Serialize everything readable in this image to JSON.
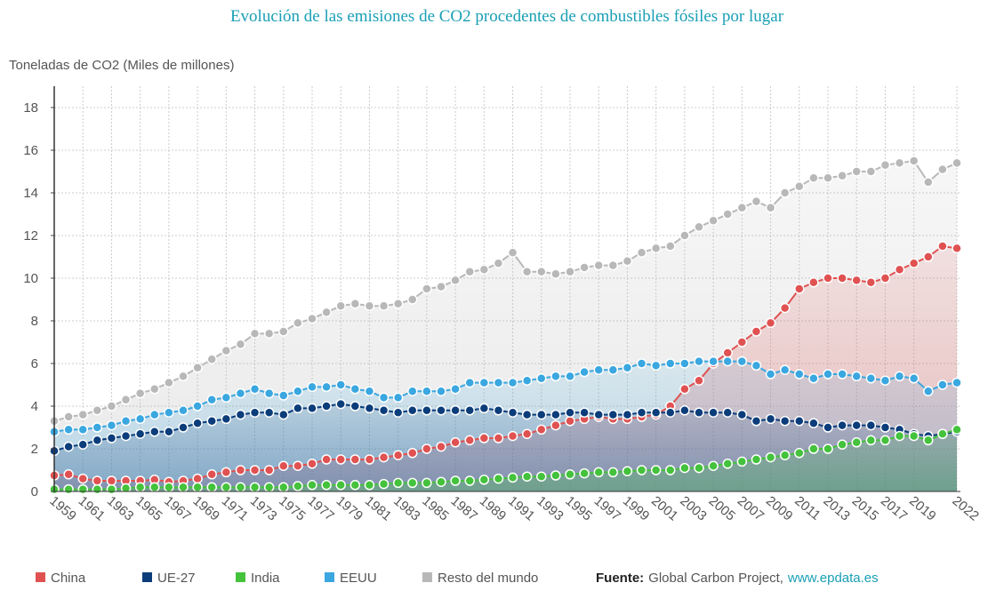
{
  "chart_data": {
    "type": "line",
    "title": "Evolución de las emisiones de CO2 procedentes de combustibles fósiles por lugar",
    "y_label": "Toneladas de CO2 (Miles de millones)",
    "categories": [
      "1959",
      null,
      "1961",
      null,
      "1963",
      null,
      "1965",
      null,
      "1967",
      null,
      "1969",
      null,
      "1971",
      null,
      "1973",
      null,
      "1975",
      null,
      "1977",
      null,
      "1979",
      null,
      "1981",
      null,
      "1983",
      null,
      "1985",
      null,
      "1987",
      null,
      "1989",
      null,
      "1991",
      null,
      "1993",
      null,
      "1995",
      null,
      "1997",
      null,
      "1999",
      null,
      "2001",
      null,
      "2003",
      null,
      "2005",
      null,
      "2007",
      null,
      "2009",
      null,
      "2011",
      null,
      "2013",
      null,
      "2015",
      null,
      "2017",
      null,
      "2019",
      null,
      null,
      "2022"
    ],
    "ylim": [
      0,
      19
    ],
    "yticks": [
      0,
      2,
      4,
      6,
      8,
      10,
      12,
      14,
      16,
      18
    ],
    "grid": true,
    "series": [
      {
        "name": "China",
        "color": "#e05252",
        "values": [
          0.75,
          0.8,
          0.6,
          0.5,
          0.5,
          0.5,
          0.5,
          0.55,
          0.45,
          0.5,
          0.6,
          0.8,
          0.9,
          1.0,
          1.0,
          1.0,
          1.2,
          1.2,
          1.3,
          1.5,
          1.5,
          1.5,
          1.5,
          1.6,
          1.7,
          1.8,
          2.0,
          2.1,
          2.3,
          2.4,
          2.5,
          2.5,
          2.6,
          2.7,
          2.9,
          3.1,
          3.3,
          3.4,
          3.5,
          3.4,
          3.4,
          3.5,
          3.6,
          4.0,
          4.8,
          5.2,
          6.0,
          6.5,
          7.0,
          7.5,
          7.9,
          8.6,
          9.5,
          9.8,
          10.0,
          10.0,
          9.9,
          9.8,
          10.0,
          10.4,
          10.7,
          11.0,
          11.5,
          11.4
        ]
      },
      {
        "name": "UE-27",
        "color": "#0b3d7a",
        "values": [
          1.9,
          2.1,
          2.2,
          2.4,
          2.5,
          2.6,
          2.7,
          2.8,
          2.8,
          3.0,
          3.2,
          3.3,
          3.4,
          3.6,
          3.7,
          3.7,
          3.6,
          3.9,
          3.9,
          4.0,
          4.1,
          4.0,
          3.9,
          3.8,
          3.7,
          3.8,
          3.8,
          3.8,
          3.8,
          3.8,
          3.9,
          3.8,
          3.7,
          3.6,
          3.6,
          3.6,
          3.7,
          3.7,
          3.6,
          3.6,
          3.6,
          3.7,
          3.7,
          3.7,
          3.8,
          3.7,
          3.7,
          3.7,
          3.6,
          3.3,
          3.4,
          3.3,
          3.3,
          3.2,
          3.0,
          3.1,
          3.1,
          3.1,
          3.0,
          2.9,
          2.7,
          2.6,
          2.7,
          2.8
        ]
      },
      {
        "name": "India",
        "color": "#44c23c",
        "values": [
          0.1,
          0.1,
          0.1,
          0.1,
          0.1,
          0.15,
          0.2,
          0.2,
          0.2,
          0.2,
          0.2,
          0.2,
          0.2,
          0.2,
          0.2,
          0.2,
          0.2,
          0.25,
          0.3,
          0.3,
          0.3,
          0.3,
          0.3,
          0.35,
          0.4,
          0.4,
          0.4,
          0.45,
          0.5,
          0.5,
          0.55,
          0.6,
          0.65,
          0.7,
          0.7,
          0.75,
          0.8,
          0.85,
          0.9,
          0.9,
          0.95,
          1.0,
          1.0,
          1.0,
          1.1,
          1.1,
          1.2,
          1.3,
          1.4,
          1.5,
          1.6,
          1.7,
          1.8,
          2.0,
          2.0,
          2.2,
          2.3,
          2.4,
          2.4,
          2.6,
          2.6,
          2.4,
          2.7,
          2.9
        ]
      },
      {
        "name": "EEUU",
        "color": "#3ba7e0",
        "values": [
          2.8,
          2.9,
          2.9,
          3.0,
          3.1,
          3.3,
          3.4,
          3.6,
          3.7,
          3.8,
          4.0,
          4.3,
          4.4,
          4.6,
          4.8,
          4.6,
          4.5,
          4.7,
          4.9,
          4.9,
          5.0,
          4.8,
          4.7,
          4.4,
          4.4,
          4.7,
          4.7,
          4.7,
          4.8,
          5.1,
          5.1,
          5.1,
          5.1,
          5.2,
          5.3,
          5.4,
          5.4,
          5.6,
          5.7,
          5.7,
          5.8,
          6.0,
          5.9,
          6.0,
          6.0,
          6.1,
          6.1,
          6.1,
          6.1,
          5.9,
          5.5,
          5.7,
          5.5,
          5.3,
          5.5,
          5.5,
          5.4,
          5.3,
          5.2,
          5.4,
          5.3,
          4.7,
          5.0,
          5.1
        ]
      },
      {
        "name": "Resto del mundo",
        "color": "#b8b8b8",
        "values": [
          3.3,
          3.5,
          3.6,
          3.8,
          4.0,
          4.3,
          4.6,
          4.8,
          5.1,
          5.4,
          5.8,
          6.2,
          6.6,
          6.9,
          7.4,
          7.4,
          7.5,
          7.9,
          8.1,
          8.4,
          8.7,
          8.8,
          8.7,
          8.7,
          8.8,
          9.0,
          9.5,
          9.6,
          9.9,
          10.3,
          10.4,
          10.7,
          11.2,
          10.3,
          10.3,
          10.2,
          10.3,
          10.5,
          10.6,
          10.6,
          10.8,
          11.2,
          11.4,
          11.5,
          12.0,
          12.4,
          12.7,
          13.0,
          13.3,
          13.6,
          13.3,
          14.0,
          14.3,
          14.7,
          14.7,
          14.8,
          15.0,
          15.0,
          15.3,
          15.4,
          15.5,
          14.5,
          15.1,
          15.4
        ]
      }
    ],
    "source": {
      "label": "Fuente:",
      "text": "Global Carbon Project,",
      "link": "www.epdata.es"
    }
  }
}
